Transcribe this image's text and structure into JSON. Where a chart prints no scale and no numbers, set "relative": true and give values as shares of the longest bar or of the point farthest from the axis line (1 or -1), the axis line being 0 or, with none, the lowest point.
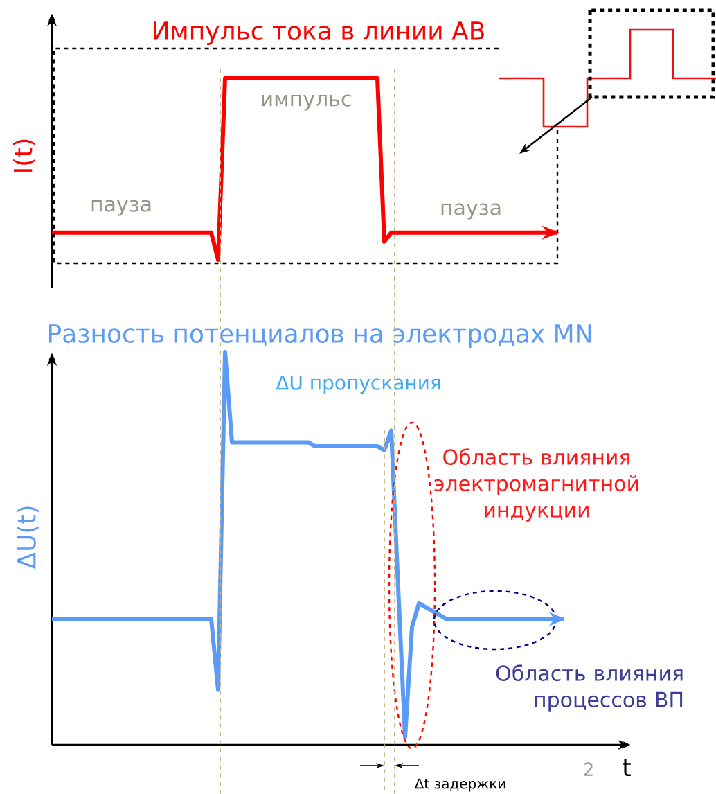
{
  "chart_data": [
    {
      "type": "line",
      "title": "Импульс  тока в линии АВ",
      "ylabel": "I(t)",
      "relative": true,
      "tick_labels": false,
      "categories": [
        null,
        null,
        null,
        null,
        null,
        null,
        null,
        null,
        null,
        null,
        null,
        null,
        null,
        null,
        null,
        null,
        null,
        null,
        null,
        null,
        null,
        null,
        null,
        null,
        null,
        null,
        null,
        null,
        null,
        null,
        null,
        null,
        null,
        null,
        null,
        null,
        null,
        null,
        null,
        null,
        null,
        null,
        null,
        null,
        null,
        null,
        null,
        null,
        null,
        null,
        null,
        null,
        null,
        null,
        null,
        null,
        null,
        null,
        null,
        null,
        null,
        null,
        null,
        null,
        null,
        null,
        null,
        null,
        null,
        null,
        null,
        null,
        null,
        null
      ],
      "series": [
        {
          "color": "#ff0000",
          "values": [
            0.15,
            0.15,
            0.15,
            0.15,
            0.15,
            0.15,
            0.15,
            0.15,
            0.15,
            0.15,
            0.15,
            0.15,
            0.15,
            0.15,
            0.15,
            0.15,
            0.15,
            0.15,
            0.15,
            0.15,
            0.15,
            0.15,
            0.15,
            0.15,
            0,
            1,
            1,
            1,
            1,
            1,
            1,
            1,
            1,
            1,
            1,
            1,
            1,
            1,
            1,
            1,
            1,
            1,
            1,
            1,
            1,
            1,
            1,
            1,
            0.1,
            0.15,
            0.15,
            0.15,
            0.15,
            0.15,
            0.15,
            0.15,
            0.15,
            0.15,
            0.15,
            0.15,
            0.15,
            0.15,
            0.15,
            0.15,
            0.15,
            0.15,
            0.15,
            0.15,
            0.15,
            0.15,
            0.15,
            0.15,
            0.15,
            0.15
          ]
        }
      ],
      "annotations": [
        "импульс",
        "пауза",
        "пауза"
      ]
    },
    {
      "type": "line",
      "title": "Разность потенциалов на электродах MN",
      "xlabel": "t",
      "ylabel": "ΔU(t)",
      "relative": true,
      "tick_labels": false,
      "categories": [
        null,
        null,
        null,
        null,
        null,
        null,
        null,
        null,
        null,
        null,
        null,
        null,
        null,
        null,
        null,
        null,
        null,
        null,
        null,
        null,
        null,
        null,
        null,
        null,
        null,
        null,
        null,
        null,
        null,
        null,
        null,
        null,
        null,
        null,
        null,
        null,
        null,
        null,
        null,
        null,
        null,
        null,
        null,
        null,
        null,
        null,
        null,
        null,
        null,
        null,
        null,
        null,
        null,
        null,
        null,
        null,
        null,
        null,
        null,
        null,
        null,
        null,
        null,
        null,
        null,
        null,
        null,
        null,
        null,
        null,
        null,
        null,
        null,
        null,
        null
      ],
      "series": [
        {
          "color": "#5b9bf5",
          "values": [
            0.32,
            0.32,
            0.32,
            0.32,
            0.32,
            0.32,
            0.32,
            0.32,
            0.32,
            0.32,
            0.32,
            0.32,
            0.32,
            0.32,
            0.32,
            0.32,
            0.32,
            0.32,
            0.32,
            0.32,
            0.32,
            0.32,
            0.32,
            0.32,
            0.14,
            1,
            0.77,
            0.77,
            0.77,
            0.77,
            0.77,
            0.77,
            0.77,
            0.77,
            0.77,
            0.77,
            0.77,
            0.77,
            0.76,
            0.76,
            0.76,
            0.76,
            0.76,
            0.76,
            0.76,
            0.76,
            0.76,
            0.76,
            0.75,
            0.8,
            0.4,
            0.02,
            0.3,
            0.36,
            0.35,
            0.34,
            0.33,
            0.32,
            0.32,
            0.32,
            0.32,
            0.32,
            0.32,
            0.32,
            0.32,
            0.32,
            0.32,
            0.32,
            0.32,
            0.32,
            0.32,
            0.32,
            0.32,
            0.32,
            0.32
          ]
        }
      ],
      "annotations": [
        "ΔU пропускания",
        "Область влияния электромагнитной индукции",
        "Область влияния процессов ВП",
        "Δt задержки",
        "2"
      ]
    }
  ]
}
